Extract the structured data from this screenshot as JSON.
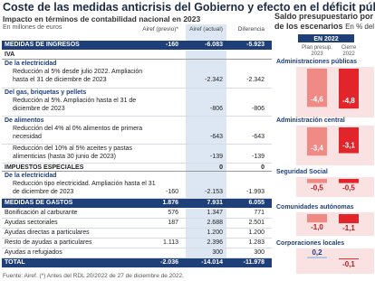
{
  "header": {
    "title": "Coste de las medidas anticrisis del Gobierno y efecto en el déficit público",
    "subtitle": "Impacto en términos de contabilidad nacional en 2023",
    "units": "En millones de euros"
  },
  "table": {
    "columns": [
      "Airef (previo)*",
      "Airef (actual)",
      "Diferencia"
    ],
    "rows": [
      {
        "label": "MEDIDAS DE INGRESOS",
        "values": [
          "-160",
          "-6.083",
          "-5.923"
        ]
      },
      {
        "label": "IVA",
        "values": [
          null,
          null,
          null
        ]
      },
      {
        "label": "De la electricidad",
        "values": [
          null,
          null,
          null
        ]
      },
      {
        "label": "Reducción al 5% desde julio 2022. Ampliación hasta el 31 de diciembre de 2023",
        "values": [
          null,
          "-2.342",
          "-2.342"
        ]
      },
      {
        "label": "Del gas, briquetas y pellets",
        "values": [
          null,
          null,
          null
        ]
      },
      {
        "label": "Reducción al 5%. Ampliación hasta el 31 de diciembre de 2023",
        "values": [
          null,
          "-806",
          "-806"
        ]
      },
      {
        "label": "De alimentos",
        "values": [
          null,
          null,
          null
        ]
      },
      {
        "label": "Reducción del 4% al 0% alimentos de primera necesidad",
        "values": [
          null,
          "-643",
          "-643"
        ]
      },
      {
        "label": "Reducción del 10% al 5% aceites y pastas alimenticias (hasta 30 junio de 2023)",
        "values": [
          null,
          "-139",
          "-139"
        ]
      },
      {
        "label": "IMPUESTOS ESPECIALES",
        "values": [
          null,
          "0",
          "0"
        ]
      },
      {
        "label": "De la electricidad",
        "values": [
          null,
          null,
          null
        ]
      },
      {
        "label": "Reducción tipo electricidad. Ampliación hasta el 31 de diciembre de 2023",
        "values": [
          "-160",
          "-2.153",
          "-1.993"
        ]
      },
      {
        "label": "MEDIDAS DE GASTOS",
        "values": [
          "1.876",
          "7.931",
          "6.055"
        ]
      },
      {
        "label": "Bonificación al carburante",
        "values": [
          "576",
          "1.347",
          "771"
        ]
      },
      {
        "label": "Ayudas sectoriales",
        "values": [
          "187",
          "2.688",
          "2.501"
        ]
      },
      {
        "label": "Ayudas directas a particulares",
        "values": [
          null,
          "1.200",
          "1.200"
        ]
      },
      {
        "label": "Resto de ayudas a particulares",
        "values": [
          "1.113",
          "2.396",
          "1.283"
        ]
      },
      {
        "label": "Ayudas a refugiados",
        "values": [
          null,
          "300",
          "300"
        ]
      },
      {
        "label": "TOTAL",
        "values": [
          "-2.036",
          "-14.014",
          "-11.978"
        ]
      }
    ]
  },
  "footer": "Fuente: Airef. (*) Antes del RDL 20/2022 de 27 de diciembre de 2022.",
  "side": {
    "title": "Saldo presupuestario por",
    "title2": "de los escenarios",
    "units": "En % del",
    "period": "EN 2022",
    "columns": [
      "Plan presup. 2023",
      "Cierre 2022"
    ],
    "colors": [
      "#f08a84",
      "#e1252b"
    ],
    "groups": [
      {
        "name": "Administraciones públicas",
        "values": [
          -4.6,
          -4.8
        ],
        "value_labels": [
          "-4,6",
          "-4,8"
        ]
      },
      {
        "name": "Administración central",
        "values": [
          -3.4,
          -3.1
        ],
        "value_labels": [
          "-3,4",
          "-3,1"
        ]
      },
      {
        "name": "Seguridad Social",
        "values": [
          -0.5,
          -0.5
        ],
        "value_labels": [
          "-0,5",
          "-0,5"
        ]
      },
      {
        "name": "Comunidades autónomas",
        "values": [
          -1.0,
          -1.1
        ],
        "value_labels": [
          "-1,0",
          "-1,1"
        ]
      },
      {
        "name": "Corporaciones locales",
        "values": [
          0.2,
          -0.1
        ],
        "value_labels": [
          "0,2",
          "-0,1"
        ]
      }
    ]
  }
}
